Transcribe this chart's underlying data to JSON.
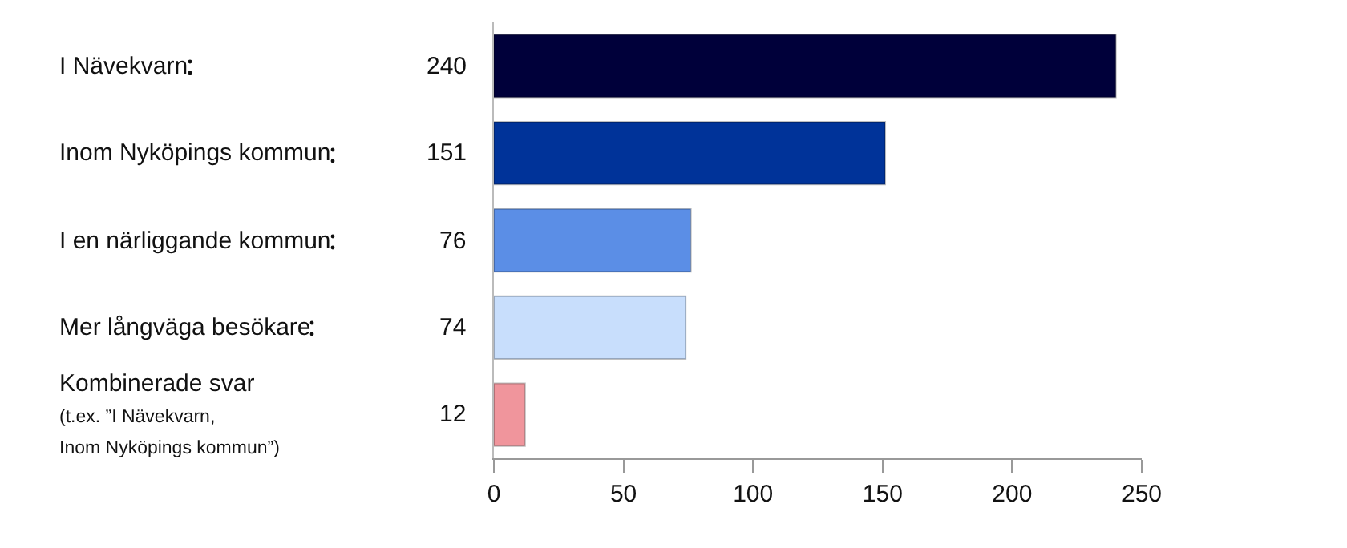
{
  "chart_data": {
    "type": "bar",
    "orientation": "horizontal",
    "categories": [
      "I Nävekvarn",
      "Inom Nyköpings kommun",
      "I en närliggande kommun",
      "Mer långväga besökare",
      "Kombinerade svar\n(t.ex. ”I Nävekvarn,\nInom Nyköpings kommun”)"
    ],
    "values": [
      240,
      151,
      76,
      74,
      12
    ],
    "colors": [
      "#00003a",
      "#003399",
      "#5b8ee6",
      "#c8defc",
      "#f0959c"
    ],
    "data_labels": true,
    "xlim": [
      0,
      250
    ],
    "xticks": [
      0,
      50,
      100,
      150,
      200,
      250
    ]
  }
}
